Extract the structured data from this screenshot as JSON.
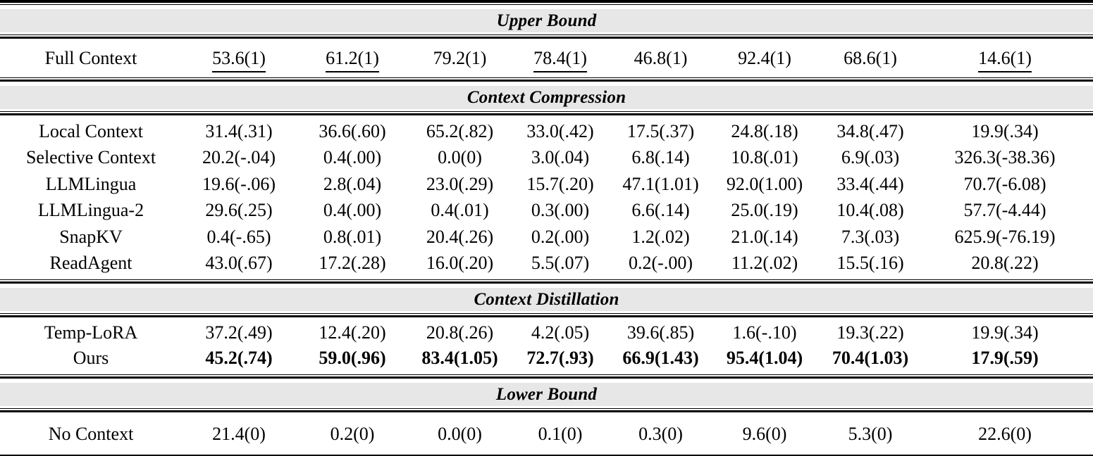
{
  "colors": {
    "banner_gray": "#e7e7e7",
    "rule_black": "#000000",
    "background": "#ffffff",
    "text": "#000000"
  },
  "table": {
    "sections": [
      {
        "header": "Upper Bound",
        "rows": [
          {
            "method": "Full Context",
            "values": [
              "53.6(1)",
              "61.2(1)",
              "79.2(1)",
              "78.4(1)",
              "46.8(1)",
              "92.4(1)",
              "68.6(1)",
              "14.6(1)"
            ],
            "underline": [
              0,
              1,
              3,
              7
            ],
            "bold": false
          }
        ]
      },
      {
        "header": "Context Compression",
        "rows": [
          {
            "method": "Local Context",
            "values": [
              "31.4(.31)",
              "36.6(.60)",
              "65.2(.82)",
              "33.0(.42)",
              "17.5(.37)",
              "24.8(.18)",
              "34.8(.47)",
              "19.9(.34)"
            ],
            "underline": [],
            "bold": false
          },
          {
            "method": "Selective Context",
            "values": [
              "20.2(-.04)",
              "0.4(.00)",
              "0.0(0)",
              "3.0(.04)",
              "6.8(.14)",
              "10.8(.01)",
              "6.9(.03)",
              "326.3(-38.36)"
            ],
            "underline": [],
            "bold": false
          },
          {
            "method": "LLMLingua",
            "values": [
              "19.6(-.06)",
              "2.8(.04)",
              "23.0(.29)",
              "15.7(.20)",
              "47.1(1.01)",
              "92.0(1.00)",
              "33.4(.44)",
              "70.7(-6.08)"
            ],
            "underline": [],
            "bold": false
          },
          {
            "method": "LLMLingua-2",
            "values": [
              "29.6(.25)",
              "0.4(.00)",
              "0.4(.01)",
              "0.3(.00)",
              "6.6(.14)",
              "25.0(.19)",
              "10.4(.08)",
              "57.7(-4.44)"
            ],
            "underline": [],
            "bold": false
          },
          {
            "method": "SnapKV",
            "values": [
              "0.4(-.65)",
              "0.8(.01)",
              "20.4(.26)",
              "0.2(.00)",
              "1.2(.02)",
              "21.0(.14)",
              "7.3(.03)",
              "625.9(-76.19)"
            ],
            "underline": [],
            "bold": false
          },
          {
            "method": "ReadAgent",
            "values": [
              "43.0(.67)",
              "17.2(.28)",
              "16.0(.20)",
              "5.5(.07)",
              "0.2(-.00)",
              "11.2(.02)",
              "15.5(.16)",
              "20.8(.22)"
            ],
            "underline": [],
            "bold": false
          }
        ]
      },
      {
        "header": "Context Distillation",
        "rows": [
          {
            "method": "Temp-LoRA",
            "values": [
              "37.2(.49)",
              "12.4(.20)",
              "20.8(.26)",
              "4.2(.05)",
              "39.6(.85)",
              "1.6(-.10)",
              "19.3(.22)",
              "19.9(.34)"
            ],
            "underline": [],
            "bold": false
          },
          {
            "method": "Ours",
            "values": [
              "45.2(.74)",
              "59.0(.96)",
              "83.4(1.05)",
              "72.7(.93)",
              "66.9(1.43)",
              "95.4(1.04)",
              "70.4(1.03)",
              "17.9(.59)"
            ],
            "underline": [],
            "bold": true
          }
        ]
      },
      {
        "header": "Lower Bound",
        "rows": [
          {
            "method": "No Context",
            "values": [
              "21.4(0)",
              "0.2(0)",
              "0.0(0)",
              "0.1(0)",
              "0.3(0)",
              "9.6(0)",
              "5.3(0)",
              "22.6(0)"
            ],
            "underline": [],
            "bold": false
          }
        ]
      }
    ]
  }
}
